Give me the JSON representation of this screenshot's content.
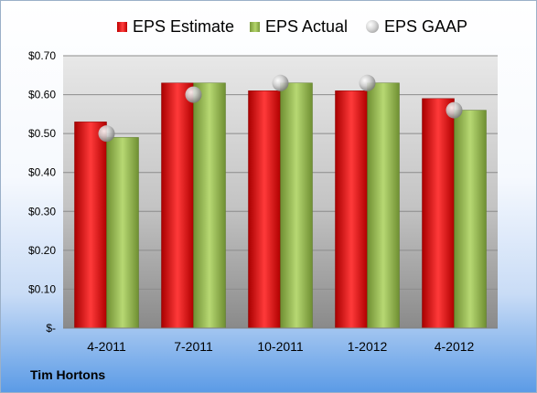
{
  "chart_data": {
    "type": "bar",
    "categories": [
      "4-2011",
      "7-2011",
      "10-2011",
      "1-2012",
      "4-2012"
    ],
    "series": [
      {
        "name": "EPS Estimate",
        "kind": "bar",
        "color": "#d42020",
        "values": [
          0.53,
          0.63,
          0.61,
          0.61,
          0.59
        ]
      },
      {
        "name": "EPS Actual",
        "kind": "bar",
        "color": "#8fb34a",
        "values": [
          0.49,
          0.63,
          0.63,
          0.63,
          0.56
        ]
      },
      {
        "name": "EPS GAAP",
        "kind": "marker",
        "color": "#b0b0b0",
        "values": [
          0.5,
          0.6,
          0.63,
          0.63,
          0.56
        ]
      }
    ],
    "y_ticks": [
      0,
      0.1,
      0.2,
      0.3,
      0.4,
      0.5,
      0.6,
      0.7
    ],
    "y_tick_labels": [
      "$-",
      "$0.10",
      "$0.20",
      "$0.30",
      "$0.40",
      "$0.50",
      "$0.60",
      "$0.70"
    ],
    "ylim": [
      0,
      0.7
    ],
    "grid": true,
    "legend_position": "top"
  },
  "legend": {
    "items": [
      {
        "label": "EPS Estimate",
        "swatch": "est"
      },
      {
        "label": "EPS Actual",
        "swatch": "act"
      },
      {
        "label": "EPS GAAP",
        "swatch": "gaap"
      }
    ]
  },
  "footer": {
    "company": "Tim Hortons"
  }
}
